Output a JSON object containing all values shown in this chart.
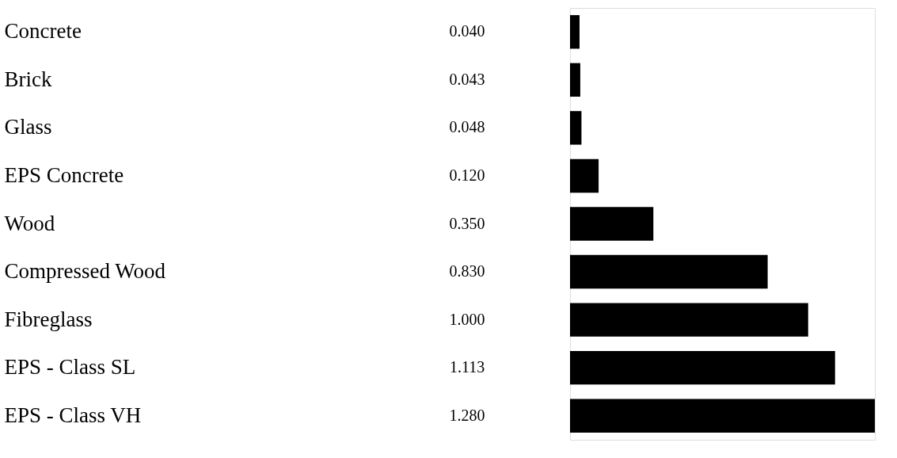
{
  "chart_data": {
    "type": "bar",
    "orientation": "horizontal",
    "value_labels": [
      "0.040",
      "0.043",
      "0.048",
      "0.120",
      "0.350",
      "0.830",
      "1.000",
      "1.113",
      "1.280"
    ],
    "categories": [
      "Concrete",
      "Brick",
      "Glass",
      "EPS Concrete",
      "Wood",
      "Compressed Wood",
      "Fibreglass",
      "EPS - Class SL",
      "EPS - Class VH"
    ],
    "values": [
      0.04,
      0.043,
      0.048,
      0.12,
      0.35,
      0.83,
      1.0,
      1.113,
      1.28
    ],
    "color": "#000000"
  }
}
